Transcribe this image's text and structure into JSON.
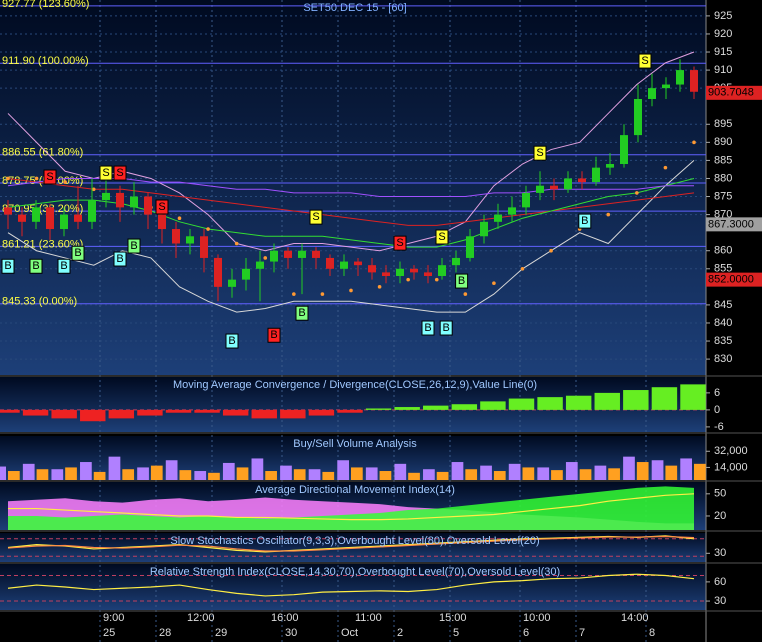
{
  "chart_data": [
    {
      "type": "candlestick",
      "title": "SET50 DEC 15 - [60]",
      "ylim": [
        825.6,
        929.4
      ],
      "yticks": [
        925,
        920,
        915,
        910,
        905,
        895,
        890,
        885,
        880,
        875,
        870,
        860,
        855,
        845,
        840,
        835,
        830
      ],
      "grid": true,
      "up_color": "#22cc22",
      "down_color": "#dd2222",
      "open": [
        872,
        870,
        868,
        872,
        866,
        870,
        868,
        874,
        876,
        872,
        875,
        870,
        866,
        862,
        864,
        858,
        850,
        852,
        855,
        857,
        860,
        858,
        860,
        858,
        855,
        857,
        856,
        854,
        853,
        855,
        854,
        853,
        856,
        858,
        864,
        868,
        870,
        872,
        876,
        878,
        877,
        880,
        879,
        883,
        884,
        892,
        902,
        905,
        906,
        910
      ],
      "high": [
        874,
        872,
        874,
        873,
        872,
        878,
        880,
        880,
        878,
        879,
        876,
        871,
        868,
        866,
        866,
        859,
        855,
        858,
        860,
        862,
        861,
        862,
        861,
        859,
        859,
        858,
        858,
        856,
        857,
        856,
        856,
        858,
        860,
        866,
        870,
        873,
        875,
        878,
        882,
        880,
        882,
        882,
        886,
        887,
        895,
        906,
        909,
        908,
        913,
        911
      ],
      "low": [
        866,
        864,
        866,
        863,
        864,
        866,
        866,
        872,
        868,
        870,
        866,
        862,
        858,
        859,
        854,
        846,
        847,
        849,
        846,
        854,
        855,
        848,
        855,
        853,
        853,
        853,
        852,
        851,
        851,
        852,
        851,
        852,
        854,
        857,
        862,
        866,
        868,
        870,
        874,
        874,
        876,
        877,
        878,
        881,
        883,
        890,
        900,
        902,
        904,
        902
      ],
      "close": [
        870,
        868,
        872,
        866,
        870,
        868,
        874,
        876,
        872,
        875,
        870,
        866,
        862,
        864,
        858,
        850,
        852,
        855,
        857,
        860,
        858,
        860,
        858,
        855,
        857,
        856,
        854,
        853,
        855,
        854,
        853,
        856,
        858,
        864,
        868,
        870,
        872,
        876,
        878,
        877,
        880,
        879,
        883,
        884,
        892,
        902,
        905,
        906,
        910,
        904
      ],
      "overlays": [
        {
          "color": "#e0a0e0",
          "values": [
            898,
            890,
            882,
            880,
            882,
            880,
            876,
            870,
            862,
            860,
            862,
            862,
            861,
            860,
            862,
            864,
            868,
            878,
            884,
            888,
            890,
            898,
            906,
            912,
            915
          ]
        },
        {
          "color": "#d8d8d8",
          "values": [
            865,
            860,
            858,
            856,
            860,
            858,
            850,
            846,
            843,
            844,
            846,
            846,
            846,
            845,
            844,
            843,
            843,
            848,
            855,
            860,
            865,
            862,
            870,
            878,
            885
          ]
        },
        {
          "color": "#dd2222",
          "values": [
            880,
            879,
            878,
            877,
            877,
            876,
            875,
            874,
            873,
            872,
            871,
            870,
            869,
            868,
            867,
            867,
            868,
            869,
            870,
            871,
            872,
            873,
            874,
            875,
            876
          ]
        },
        {
          "color": "#33dd33",
          "values": [
            872,
            873,
            874,
            874,
            873,
            871,
            868,
            866,
            865,
            864,
            864,
            864,
            863,
            862,
            861,
            861,
            863,
            866,
            869,
            871,
            873,
            875,
            876,
            878,
            880
          ]
        },
        {
          "color": "#a050ff",
          "values": [
            878,
            879,
            880,
            880,
            880,
            879,
            879,
            878,
            877,
            877,
            876,
            876,
            876,
            875,
            875,
            875,
            875,
            876,
            876,
            877,
            877,
            877,
            877,
            878,
            878
          ]
        }
      ],
      "sar": {
        "color": "#ff9933",
        "values": [
          880,
          880,
          879,
          877,
          875,
          872,
          869,
          866,
          862,
          858,
          848,
          848,
          849,
          850,
          852,
          852,
          848,
          851,
          855,
          860,
          866,
          870,
          876,
          883,
          890
        ]
      },
      "fib_levels": [
        {
          "value": 927.77,
          "label": "927.77 (123.60%)"
        },
        {
          "value": 911.9,
          "label": "911.90 (100.00%)"
        },
        {
          "value": 886.55,
          "label": "886.55 (61.80%)"
        },
        {
          "value": 878.75,
          "label": "878.75 (50.00%)"
        },
        {
          "value": 870.95,
          "label": "870.95 (38.20%)"
        },
        {
          "value": 861.21,
          "label": "861.21 (23.60%)"
        },
        {
          "value": 845.33,
          "label": "845.33 (0.00%)"
        }
      ],
      "price_tags": [
        {
          "value": 903.7048,
          "color": "#dd2222"
        },
        {
          "value": {
            "value": 867.3,
            "label": "867.3000"
          },
          "color": "#a0a0a0"
        },
        {
          "value": {
            "value": 852,
            "label": "852.0000"
          },
          "color": "#dd2222"
        }
      ],
      "signals": [
        {
          "label": "B",
          "index": 0,
          "value": 855.7,
          "color": "#80ffff"
        },
        {
          "label": "B",
          "index": 2,
          "value": 855.7,
          "color": "#80ff80"
        },
        {
          "label": "B",
          "index": 4,
          "value": 855.7,
          "color": "#80ffff"
        },
        {
          "label": "B",
          "index": 5,
          "value": 859.3,
          "color": "#80ff80"
        },
        {
          "label": "S",
          "index": 3,
          "value": 880.4,
          "color": "#ff2222"
        },
        {
          "label": "S",
          "index": 7,
          "value": 881.5,
          "color": "#ffff33"
        },
        {
          "label": "S",
          "index": 8,
          "value": 881.5,
          "color": "#ff2222"
        },
        {
          "label": "S",
          "index": 11,
          "value": 872.1,
          "color": "#ff2222"
        },
        {
          "label": "B",
          "index": 8,
          "value": 857.7,
          "color": "#80ffff"
        },
        {
          "label": "B",
          "index": 9,
          "value": 861.3,
          "color": "#80ff80"
        },
        {
          "label": "B",
          "index": 16,
          "value": 835,
          "color": "#80ffff"
        },
        {
          "label": "B",
          "index": 19,
          "value": 836.6,
          "color": "#ff2222"
        },
        {
          "label": "B",
          "index": 21,
          "value": 842.7,
          "color": "#80ff80"
        },
        {
          "label": "S",
          "index": 22,
          "value": 869.3,
          "color": "#ffff33"
        },
        {
          "label": "S",
          "index": 28,
          "value": 862.1,
          "color": "#ff2222"
        },
        {
          "label": "S",
          "index": 31,
          "value": 863.8,
          "color": "#ffff33"
        },
        {
          "label": "B",
          "index": 30,
          "value": 838.6,
          "color": "#80ffff"
        },
        {
          "label": "B",
          "index": 31.3,
          "value": 838.6,
          "color": "#80ffff"
        },
        {
          "label": "B",
          "index": 32.4,
          "value": 851.6,
          "color": "#80ff80"
        },
        {
          "label": "S",
          "index": 38,
          "value": 887,
          "color": "#ffff33"
        },
        {
          "label": "B",
          "index": 41.2,
          "value": 868.2,
          "color": "#80ffff"
        },
        {
          "label": "S",
          "index": 45.5,
          "value": 912.5,
          "color": "#ffff33"
        }
      ],
      "times": [
        {
          "label": "9:00",
          "index": 7
        },
        {
          "label": "12:00",
          "index": 13
        },
        {
          "label": "16:00",
          "index": 19
        },
        {
          "label": "11:00",
          "index": 25
        },
        {
          "label": "15:00",
          "index": 31
        },
        {
          "label": "10:00",
          "index": 37
        },
        {
          "label": "14:00",
          "index": 44
        }
      ],
      "dates": [
        {
          "label": "25",
          "index": 7
        },
        {
          "label": "28",
          "index": 11
        },
        {
          "label": "29",
          "index": 15
        },
        {
          "label": "30",
          "index": 20
        },
        {
          "label": "Oct",
          "index": 24
        },
        {
          "label": "2",
          "index": 28
        },
        {
          "label": "5",
          "index": 32
        },
        {
          "label": "6",
          "index": 37
        },
        {
          "label": "7",
          "index": 41
        },
        {
          "label": "8",
          "index": 46
        }
      ]
    },
    {
      "type": "bar",
      "title": "Moving Average Convergence / Divergence(CLOSE,26,12,9),Value Line(0)",
      "ylim": [
        -7.8,
        11.6
      ],
      "yticks": [
        6,
        0,
        -6
      ],
      "levels": [
        0
      ],
      "series": [
        {
          "color": "#66ee22",
          "negative_color": "#ee2222",
          "values": [
            -1,
            -2,
            -3,
            -4,
            -3,
            -2,
            -1,
            -1,
            -2,
            -3,
            -3,
            -2,
            -1,
            0.5,
            1,
            1.5,
            2,
            3,
            4,
            4.5,
            5,
            6,
            7,
            8,
            9
          ]
        }
      ]
    },
    {
      "type": "bar",
      "title": "Buy/Sell Volume Analysis",
      "ylim": [
        0,
        49000
      ],
      "yticks": [
        {
          "value": 32000,
          "label": "32,000"
        },
        {
          "value": 14000,
          "label": "14,000"
        }
      ],
      "series": [
        {
          "color": "#b080ff",
          "values": [
            15000,
            18000,
            12000,
            20000,
            26000,
            14000,
            22000,
            10000,
            19000,
            24000,
            16000,
            12000,
            22000,
            14000,
            18000,
            12000,
            20000,
            16000,
            18000,
            14000,
            20000,
            16000,
            26000,
            22000,
            24000
          ]
        },
        {
          "color": "#ffa020",
          "values": [
            10000,
            12000,
            14000,
            9000,
            12000,
            16000,
            11000,
            8000,
            14000,
            10000,
            12000,
            9000,
            14000,
            10000,
            8000,
            9000,
            12000,
            10000,
            14000,
            11000,
            12000,
            13000,
            20000,
            16000,
            18000
          ]
        }
      ]
    },
    {
      "type": "area",
      "title": "Average Directional Movement Index(14)",
      "ylim": [
        1,
        66
      ],
      "yticks": [
        50,
        20
      ],
      "series": [
        {
          "style": "area",
          "color": "#ff80ff",
          "values": [
            40,
            42,
            44,
            40,
            38,
            42,
            44,
            40,
            42,
            45,
            42,
            40,
            38,
            36,
            32,
            30,
            28,
            25,
            22,
            20,
            18,
            15,
            12,
            10,
            10
          ]
        },
        {
          "style": "area",
          "color": "#33ff33",
          "values": [
            20,
            20,
            18,
            20,
            22,
            20,
            18,
            20,
            18,
            16,
            18,
            20,
            22,
            24,
            28,
            30,
            34,
            38,
            42,
            46,
            50,
            54,
            58,
            60,
            58
          ]
        },
        {
          "style": "line",
          "color": "#ffee44",
          "values": [
            30,
            30,
            28,
            26,
            24,
            22,
            20,
            20,
            18,
            18,
            17,
            16,
            15,
            15,
            16,
            18,
            20,
            22,
            26,
            30,
            34,
            40,
            44,
            48,
            50
          ]
        }
      ]
    },
    {
      "type": "line",
      "title": "Slow Stochastics Oscillator(9,3,3),Overbought Level(80),Oversold Level(20)",
      "ylim": [
        0,
        100
      ],
      "yticks": [
        30
      ],
      "levels": [
        80,
        20
      ],
      "series": [
        {
          "color": "#ffee44",
          "values": [
            50,
            60,
            55,
            45,
            50,
            55,
            60,
            50,
            40,
            35,
            40,
            45,
            50,
            55,
            60,
            65,
            70,
            75,
            80,
            82,
            85,
            88,
            85,
            90,
            80
          ]
        },
        {
          "color": "#ff8844",
          "values": [
            48,
            55,
            57,
            50,
            48,
            52,
            58,
            55,
            45,
            38,
            38,
            42,
            47,
            52,
            57,
            62,
            67,
            72,
            77,
            80,
            83,
            86,
            86,
            88,
            84
          ]
        }
      ]
    },
    {
      "type": "line",
      "title": "Relative Strength Index(CLOSE,14,30,70),Overbought Level(70),Oversold Level(30)",
      "ylim": [
        16,
        88
      ],
      "yticks": [
        60,
        30
      ],
      "levels": [
        70,
        30
      ],
      "series": [
        {
          "color": "#ffee44",
          "values": [
            50,
            55,
            52,
            48,
            50,
            52,
            55,
            48,
            42,
            38,
            40,
            44,
            45,
            46,
            45,
            48,
            55,
            60,
            62,
            65,
            66,
            70,
            72,
            70,
            65
          ]
        }
      ]
    }
  ]
}
